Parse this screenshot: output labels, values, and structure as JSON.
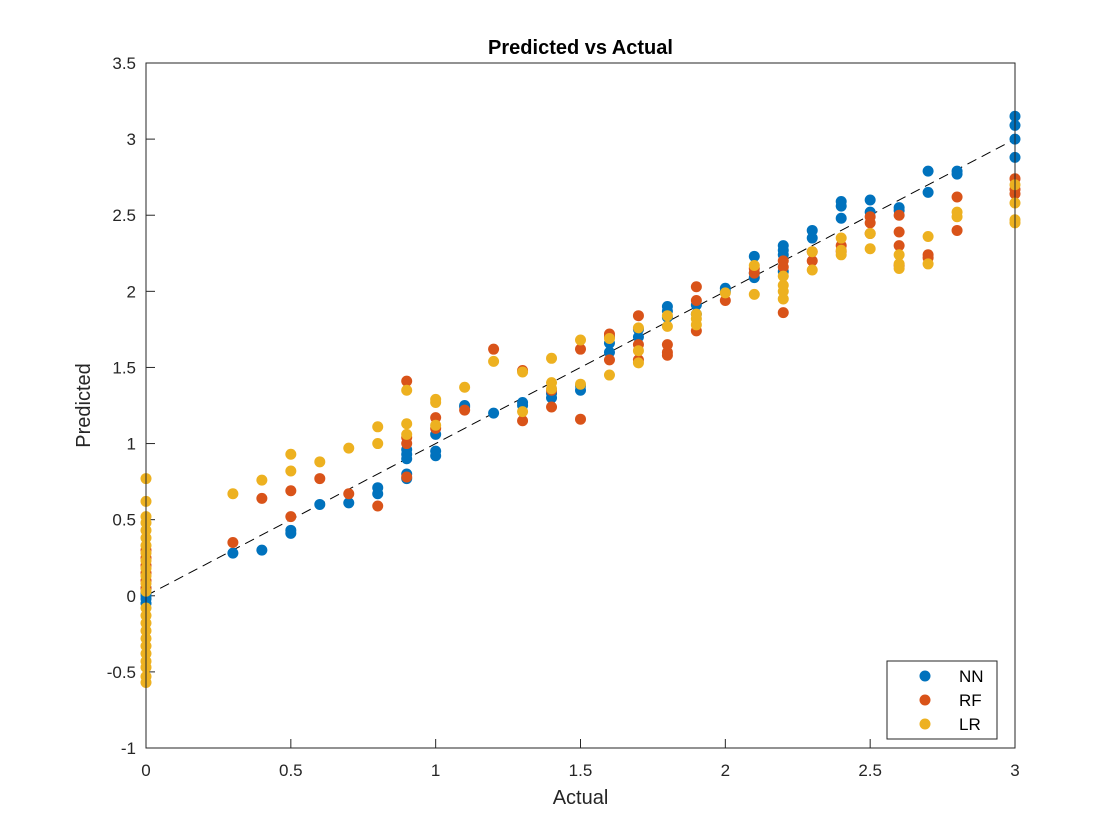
{
  "chart_data": {
    "type": "scatter",
    "title": "Predicted vs Actual",
    "xlabel": "Actual",
    "ylabel": "Predicted",
    "xlim": [
      0,
      3
    ],
    "ylim": [
      -1,
      3.5
    ],
    "xticks": [
      "0",
      "0.5",
      "1",
      "1.5",
      "2",
      "2.5",
      "3"
    ],
    "yticks": [
      "-1",
      "-0.5",
      "0",
      "0.5",
      "1",
      "1.5",
      "2",
      "2.5",
      "3",
      "3.5"
    ],
    "grid": false,
    "legend_position": "bottom-right",
    "reference_line": {
      "style": "dashed",
      "color": "#000000",
      "x": [
        0,
        3
      ],
      "y": [
        0,
        3
      ]
    },
    "series": [
      {
        "name": "NN",
        "color": "#0072BD",
        "points": [
          [
            0,
            -0.05
          ],
          [
            0,
            -0.02
          ],
          [
            0,
            0.0
          ],
          [
            0,
            0.02
          ],
          [
            0,
            0.05
          ],
          [
            0.3,
            0.28
          ],
          [
            0.4,
            0.3
          ],
          [
            0.5,
            0.41
          ],
          [
            0.5,
            0.43
          ],
          [
            0.6,
            0.6
          ],
          [
            0.7,
            0.61
          ],
          [
            0.8,
            0.67
          ],
          [
            0.8,
            0.71
          ],
          [
            0.9,
            0.77
          ],
          [
            0.9,
            0.8
          ],
          [
            0.9,
            0.9
          ],
          [
            0.9,
            0.93
          ],
          [
            0.9,
            0.96
          ],
          [
            1.0,
            0.92
          ],
          [
            1.0,
            0.95
          ],
          [
            1.0,
            1.06
          ],
          [
            1.1,
            1.24
          ],
          [
            1.1,
            1.25
          ],
          [
            1.2,
            1.2
          ],
          [
            1.3,
            1.25
          ],
          [
            1.3,
            1.27
          ],
          [
            1.4,
            1.3
          ],
          [
            1.4,
            1.33
          ],
          [
            1.5,
            1.35
          ],
          [
            1.5,
            1.38
          ],
          [
            1.6,
            1.6
          ],
          [
            1.6,
            1.66
          ],
          [
            1.6,
            1.7
          ],
          [
            1.7,
            1.7
          ],
          [
            1.7,
            1.75
          ],
          [
            1.8,
            1.83
          ],
          [
            1.8,
            1.87
          ],
          [
            1.8,
            1.9
          ],
          [
            1.9,
            1.85
          ],
          [
            1.9,
            1.91
          ],
          [
            2.0,
            2.0
          ],
          [
            2.0,
            2.02
          ],
          [
            2.1,
            2.09
          ],
          [
            2.1,
            2.12
          ],
          [
            2.1,
            2.23
          ],
          [
            2.2,
            2.13
          ],
          [
            2.2,
            2.24
          ],
          [
            2.2,
            2.27
          ],
          [
            2.2,
            2.3
          ],
          [
            2.3,
            2.35
          ],
          [
            2.3,
            2.4
          ],
          [
            2.4,
            2.48
          ],
          [
            2.4,
            2.56
          ],
          [
            2.4,
            2.59
          ],
          [
            2.5,
            2.52
          ],
          [
            2.5,
            2.6
          ],
          [
            2.6,
            2.53
          ],
          [
            2.6,
            2.55
          ],
          [
            2.7,
            2.65
          ],
          [
            2.7,
            2.79
          ],
          [
            2.8,
            2.77
          ],
          [
            2.8,
            2.79
          ],
          [
            3.0,
            2.88
          ],
          [
            3.0,
            3.0
          ],
          [
            3.0,
            3.09
          ],
          [
            3.0,
            3.15
          ]
        ]
      },
      {
        "name": "RF",
        "color": "#D95319",
        "points": [
          [
            0,
            0.05
          ],
          [
            0,
            0.1
          ],
          [
            0,
            0.15
          ],
          [
            0,
            0.2
          ],
          [
            0,
            0.25
          ],
          [
            0,
            0.3
          ],
          [
            0.3,
            0.35
          ],
          [
            0.4,
            0.64
          ],
          [
            0.5,
            0.52
          ],
          [
            0.5,
            0.69
          ],
          [
            0.6,
            0.77
          ],
          [
            0.7,
            0.67
          ],
          [
            0.8,
            0.59
          ],
          [
            0.9,
            0.78
          ],
          [
            0.9,
            1.0
          ],
          [
            0.9,
            1.04
          ],
          [
            0.9,
            1.41
          ],
          [
            1.0,
            1.1
          ],
          [
            1.0,
            1.17
          ],
          [
            1.1,
            1.22
          ],
          [
            1.2,
            1.62
          ],
          [
            1.3,
            1.15
          ],
          [
            1.3,
            1.48
          ],
          [
            1.4,
            1.24
          ],
          [
            1.4,
            1.35
          ],
          [
            1.5,
            1.16
          ],
          [
            1.5,
            1.62
          ],
          [
            1.6,
            1.55
          ],
          [
            1.6,
            1.7
          ],
          [
            1.6,
            1.72
          ],
          [
            1.7,
            1.55
          ],
          [
            1.7,
            1.65
          ],
          [
            1.7,
            1.84
          ],
          [
            1.8,
            1.58
          ],
          [
            1.8,
            1.6
          ],
          [
            1.8,
            1.65
          ],
          [
            1.9,
            1.74
          ],
          [
            1.9,
            1.94
          ],
          [
            1.9,
            2.03
          ],
          [
            2.0,
            1.94
          ],
          [
            2.1,
            2.12
          ],
          [
            2.1,
            2.15
          ],
          [
            2.2,
            1.86
          ],
          [
            2.2,
            2.16
          ],
          [
            2.2,
            2.2
          ],
          [
            2.3,
            2.2
          ],
          [
            2.3,
            2.26
          ],
          [
            2.4,
            2.26
          ],
          [
            2.4,
            2.3
          ],
          [
            2.5,
            2.38
          ],
          [
            2.5,
            2.45
          ],
          [
            2.5,
            2.49
          ],
          [
            2.6,
            2.17
          ],
          [
            2.6,
            2.3
          ],
          [
            2.6,
            2.39
          ],
          [
            2.6,
            2.5
          ],
          [
            2.7,
            2.22
          ],
          [
            2.7,
            2.24
          ],
          [
            2.8,
            2.4
          ],
          [
            2.8,
            2.62
          ],
          [
            3.0,
            2.64
          ],
          [
            3.0,
            2.67
          ],
          [
            3.0,
            2.74
          ]
        ]
      },
      {
        "name": "LR",
        "color": "#EDB120",
        "points": [
          [
            0,
            -0.57
          ],
          [
            0,
            -0.53
          ],
          [
            0,
            -0.47
          ],
          [
            0,
            -0.43
          ],
          [
            0,
            -0.38
          ],
          [
            0,
            -0.33
          ],
          [
            0,
            -0.28
          ],
          [
            0,
            -0.23
          ],
          [
            0,
            -0.18
          ],
          [
            0,
            -0.13
          ],
          [
            0,
            -0.08
          ],
          [
            0,
            0.03
          ],
          [
            0,
            0.08
          ],
          [
            0,
            0.13
          ],
          [
            0,
            0.18
          ],
          [
            0,
            0.23
          ],
          [
            0,
            0.28
          ],
          [
            0,
            0.33
          ],
          [
            0,
            0.38
          ],
          [
            0,
            0.43
          ],
          [
            0,
            0.48
          ],
          [
            0,
            0.52
          ],
          [
            0,
            0.62
          ],
          [
            0,
            0.77
          ],
          [
            0.3,
            0.67
          ],
          [
            0.4,
            0.76
          ],
          [
            0.5,
            0.82
          ],
          [
            0.5,
            0.93
          ],
          [
            0.6,
            0.88
          ],
          [
            0.7,
            0.97
          ],
          [
            0.8,
            1.0
          ],
          [
            0.8,
            1.11
          ],
          [
            0.9,
            1.06
          ],
          [
            0.9,
            1.13
          ],
          [
            0.9,
            1.35
          ],
          [
            1.0,
            1.12
          ],
          [
            1.0,
            1.27
          ],
          [
            1.0,
            1.29
          ],
          [
            1.1,
            1.37
          ],
          [
            1.2,
            1.54
          ],
          [
            1.3,
            1.21
          ],
          [
            1.3,
            1.47
          ],
          [
            1.4,
            1.36
          ],
          [
            1.4,
            1.4
          ],
          [
            1.4,
            1.56
          ],
          [
            1.5,
            1.39
          ],
          [
            1.5,
            1.68
          ],
          [
            1.6,
            1.45
          ],
          [
            1.6,
            1.69
          ],
          [
            1.7,
            1.53
          ],
          [
            1.7,
            1.61
          ],
          [
            1.7,
            1.76
          ],
          [
            1.8,
            1.77
          ],
          [
            1.8,
            1.84
          ],
          [
            1.9,
            1.78
          ],
          [
            1.9,
            1.82
          ],
          [
            1.9,
            1.85
          ],
          [
            2.0,
            1.99
          ],
          [
            2.1,
            1.98
          ],
          [
            2.1,
            2.17
          ],
          [
            2.2,
            1.95
          ],
          [
            2.2,
            2.0
          ],
          [
            2.2,
            2.04
          ],
          [
            2.2,
            2.1
          ],
          [
            2.3,
            2.14
          ],
          [
            2.3,
            2.26
          ],
          [
            2.4,
            2.24
          ],
          [
            2.4,
            2.27
          ],
          [
            2.4,
            2.35
          ],
          [
            2.5,
            2.28
          ],
          [
            2.5,
            2.38
          ],
          [
            2.6,
            2.15
          ],
          [
            2.6,
            2.18
          ],
          [
            2.6,
            2.24
          ],
          [
            2.7,
            2.18
          ],
          [
            2.7,
            2.36
          ],
          [
            2.8,
            2.49
          ],
          [
            2.8,
            2.52
          ],
          [
            3.0,
            2.45
          ],
          [
            3.0,
            2.47
          ],
          [
            3.0,
            2.58
          ],
          [
            3.0,
            2.7
          ]
        ]
      }
    ]
  }
}
